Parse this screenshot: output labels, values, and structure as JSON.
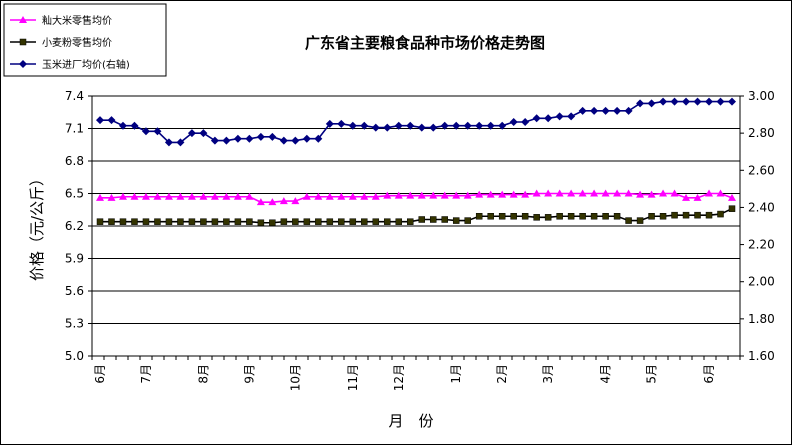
{
  "chart_data": {
    "type": "line",
    "title": "广东省主要粮食品种市场价格走势图",
    "xlabel": "月　份",
    "ylabel": "价格（元/公斤）",
    "ylim": [
      5.0,
      7.4
    ],
    "yticks": [
      "5.0",
      "5.3",
      "5.6",
      "5.9",
      "6.2",
      "6.5",
      "6.8",
      "7.1",
      "7.4"
    ],
    "y2lim": [
      1.6,
      3.0
    ],
    "y2ticks": [
      "1.60",
      "1.80",
      "2.00",
      "2.20",
      "2.40",
      "2.60",
      "2.80",
      "3.00"
    ],
    "grid": true,
    "legend_position": "top-left",
    "x_tick_labels": [
      {
        "label": "6月",
        "index": 0
      },
      {
        "label": "7月",
        "index": 4
      },
      {
        "label": "8月",
        "index": 9
      },
      {
        "label": "9月",
        "index": 13
      },
      {
        "label": "10月",
        "index": 17
      },
      {
        "label": "11月",
        "index": 22
      },
      {
        "label": "12月",
        "index": 26
      },
      {
        "label": "1月",
        "index": 31
      },
      {
        "label": "2月",
        "index": 35
      },
      {
        "label": "3月",
        "index": 39
      },
      {
        "label": "4月",
        "index": 44
      },
      {
        "label": "5月",
        "index": 48
      },
      {
        "label": "6月",
        "index": 53
      }
    ],
    "series": [
      {
        "name": "籼大米零售均价",
        "axis": "left",
        "color": "#ff00ff",
        "marker": "triangle",
        "values": [
          6.46,
          6.46,
          6.47,
          6.47,
          6.47,
          6.47,
          6.47,
          6.47,
          6.47,
          6.47,
          6.47,
          6.47,
          6.47,
          6.47,
          6.42,
          6.42,
          6.43,
          6.43,
          6.47,
          6.47,
          6.47,
          6.47,
          6.47,
          6.47,
          6.47,
          6.48,
          6.48,
          6.48,
          6.48,
          6.48,
          6.48,
          6.48,
          6.48,
          6.49,
          6.49,
          6.49,
          6.49,
          6.49,
          6.5,
          6.5,
          6.5,
          6.5,
          6.5,
          6.5,
          6.5,
          6.5,
          6.5,
          6.49,
          6.49,
          6.5,
          6.5,
          6.46,
          6.46,
          6.5,
          6.5,
          6.46
        ]
      },
      {
        "name": "小麦粉零售均价",
        "axis": "left",
        "color": "#000000",
        "marker": "square",
        "values": [
          6.24,
          6.24,
          6.24,
          6.24,
          6.24,
          6.24,
          6.24,
          6.24,
          6.24,
          6.24,
          6.24,
          6.24,
          6.24,
          6.24,
          6.23,
          6.23,
          6.24,
          6.24,
          6.24,
          6.24,
          6.24,
          6.24,
          6.24,
          6.24,
          6.24,
          6.24,
          6.24,
          6.24,
          6.26,
          6.26,
          6.26,
          6.25,
          6.25,
          6.29,
          6.29,
          6.29,
          6.29,
          6.29,
          6.28,
          6.28,
          6.29,
          6.29,
          6.29,
          6.29,
          6.29,
          6.29,
          6.25,
          6.25,
          6.29,
          6.29,
          6.3,
          6.3,
          6.3,
          6.3,
          6.31,
          6.36
        ]
      },
      {
        "name": "玉米进厂均价(右轴)",
        "axis": "right",
        "color": "#000080",
        "marker": "diamond",
        "values": [
          2.87,
          2.87,
          2.84,
          2.84,
          2.81,
          2.81,
          2.75,
          2.75,
          2.8,
          2.8,
          2.76,
          2.76,
          2.77,
          2.77,
          2.78,
          2.78,
          2.76,
          2.76,
          2.77,
          2.77,
          2.85,
          2.85,
          2.84,
          2.84,
          2.83,
          2.83,
          2.84,
          2.84,
          2.83,
          2.83,
          2.84,
          2.84,
          2.84,
          2.84,
          2.84,
          2.84,
          2.86,
          2.86,
          2.88,
          2.88,
          2.89,
          2.89,
          2.92,
          2.92,
          2.92,
          2.92,
          2.92,
          2.96,
          2.96,
          2.97,
          2.97,
          2.97,
          2.97,
          2.97,
          2.97,
          2.97
        ]
      }
    ]
  }
}
